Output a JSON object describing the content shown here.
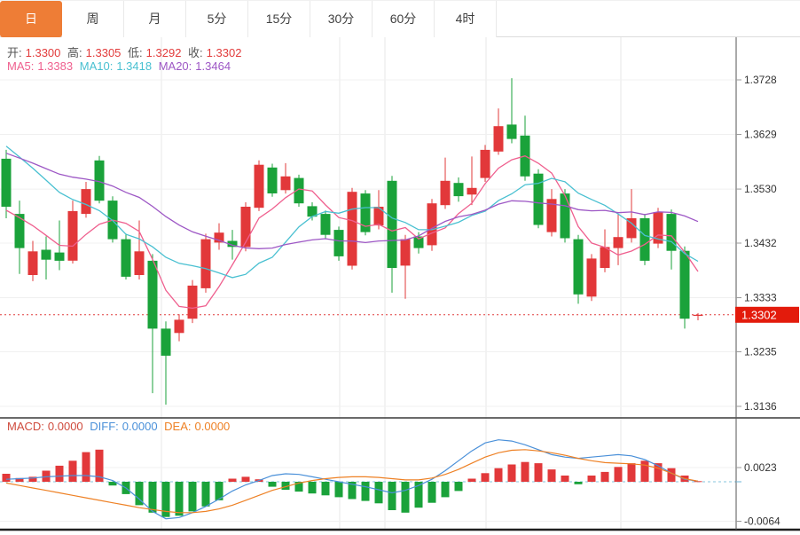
{
  "tabs": [
    {
      "label": "日",
      "selected": true
    },
    {
      "label": "周",
      "selected": false
    },
    {
      "label": "月",
      "selected": false
    },
    {
      "label": "5分",
      "selected": false
    },
    {
      "label": "15分",
      "selected": false
    },
    {
      "label": "30分",
      "selected": false
    },
    {
      "label": "60分",
      "selected": false
    },
    {
      "label": "4时",
      "selected": false
    }
  ],
  "quote_bar": {
    "open_label": "开:",
    "open": "1.3300",
    "high_label": "高:",
    "high": "1.3305",
    "low_label": "低:",
    "low": "1.3292",
    "close_label": "收:",
    "close": "1.3302"
  },
  "ma_bar": {
    "ma5_label": "MA5:",
    "ma5": "1.3383",
    "ma10_label": "MA10:",
    "ma10": "1.3418",
    "ma20_label": "MA20:",
    "ma20": "1.3464"
  },
  "macd_bar": {
    "macd_label": "MACD:",
    "macd": "0.0000",
    "diff_label": "DIFF:",
    "diff": "0.0000",
    "dea_label": "DEA:",
    "dea": "0.0000"
  },
  "price_tag": "1.3302",
  "colors": {
    "up": "#e2383a",
    "down": "#1aa23a",
    "ma5": "#ef5f8e",
    "ma10": "#49c0d1",
    "ma20": "#9d57c5",
    "diff": "#4a90d9",
    "dea": "#ee8125",
    "label_dark": "#555555",
    "value_red": "#e23b3b",
    "macd_label": "#cf4a3c",
    "tag_bg": "#e31b0c",
    "dotted": "#e03b3b",
    "axis_text": "#333333",
    "grid": "#f0f0f0",
    "vgrid": "#e7e7e7",
    "tab_selected_bg": "#ee7d36"
  },
  "chart_data": {
    "type": "candlestick",
    "timeframe": "日",
    "price_ticks": [
      1.3728,
      1.3629,
      1.353,
      1.3432,
      1.3333,
      1.3235,
      1.3136
    ],
    "current_price": 1.3302,
    "vgrid_x": [
      182,
      383,
      434,
      548,
      700
    ],
    "candles": [
      [
        1.3585,
        1.3601,
        1.3477,
        1.3498
      ],
      [
        1.3485,
        1.3509,
        1.3376,
        1.3423
      ],
      [
        1.3374,
        1.3436,
        1.3363,
        1.3417
      ],
      [
        1.342,
        1.3444,
        1.3366,
        1.3402
      ],
      [
        1.3415,
        1.3473,
        1.3383,
        1.34
      ],
      [
        1.34,
        1.3509,
        1.3395,
        1.349
      ],
      [
        1.3485,
        1.3543,
        1.3478,
        1.353
      ],
      [
        1.3582,
        1.359,
        1.3504,
        1.3509
      ],
      [
        1.3509,
        1.3517,
        1.3433,
        1.3439
      ],
      [
        1.3439,
        1.3449,
        1.3366,
        1.3371
      ],
      [
        1.3374,
        1.3473,
        1.3366,
        1.3417
      ],
      [
        1.34,
        1.3412,
        1.316,
        1.3277
      ],
      [
        1.3277,
        1.329,
        1.3139,
        1.3228
      ],
      [
        1.3269,
        1.3303,
        1.3254,
        1.3293
      ],
      [
        1.3295,
        1.3365,
        1.3287,
        1.3355
      ],
      [
        1.335,
        1.3449,
        1.3342,
        1.3439
      ],
      [
        1.3433,
        1.3468,
        1.342,
        1.3451
      ],
      [
        1.3436,
        1.3456,
        1.3402,
        1.3425
      ],
      [
        1.3425,
        1.3506,
        1.3417,
        1.3498
      ],
      [
        1.3496,
        1.3582,
        1.349,
        1.3574
      ],
      [
        1.3569,
        1.3576,
        1.3516,
        1.3522
      ],
      [
        1.3528,
        1.3577,
        1.3522,
        1.3553
      ],
      [
        1.355,
        1.3556,
        1.3498,
        1.3504
      ],
      [
        1.3499,
        1.3506,
        1.3473,
        1.348
      ],
      [
        1.3485,
        1.3491,
        1.3439,
        1.3447
      ],
      [
        1.3456,
        1.3462,
        1.34,
        1.3408
      ],
      [
        1.3391,
        1.3532,
        1.3384,
        1.3525
      ],
      [
        1.3522,
        1.3528,
        1.3446,
        1.3452
      ],
      [
        1.3464,
        1.3528,
        1.3457,
        1.3498
      ],
      [
        1.3545,
        1.3554,
        1.3342,
        1.3387
      ],
      [
        1.3391,
        1.3447,
        1.3331,
        1.3439
      ],
      [
        1.3444,
        1.3452,
        1.3413,
        1.3423
      ],
      [
        1.3428,
        1.3512,
        1.3418,
        1.3504
      ],
      [
        1.3501,
        1.3587,
        1.3494,
        1.3545
      ],
      [
        1.3541,
        1.3551,
        1.3507,
        1.3517
      ],
      [
        1.352,
        1.3589,
        1.3501,
        1.3532
      ],
      [
        1.355,
        1.361,
        1.3543,
        1.3601
      ],
      [
        1.3598,
        1.3676,
        1.3592,
        1.3644
      ],
      [
        1.3647,
        1.3731,
        1.3613,
        1.3621
      ],
      [
        1.3627,
        1.3663,
        1.3545,
        1.3553
      ],
      [
        1.3558,
        1.3566,
        1.3459,
        1.3465
      ],
      [
        1.3452,
        1.353,
        1.3444,
        1.3512
      ],
      [
        1.3522,
        1.353,
        1.3433,
        1.3441
      ],
      [
        1.3439,
        1.3447,
        1.3322,
        1.3339
      ],
      [
        1.3335,
        1.3412,
        1.3327,
        1.3404
      ],
      [
        1.3387,
        1.3457,
        1.3379,
        1.3425
      ],
      [
        1.3423,
        1.3485,
        1.3392,
        1.3443
      ],
      [
        1.3441,
        1.353,
        1.3433,
        1.3477
      ],
      [
        1.3477,
        1.3485,
        1.3392,
        1.34
      ],
      [
        1.3431,
        1.3496,
        1.3423,
        1.3488
      ],
      [
        1.3485,
        1.3493,
        1.3384,
        1.3418
      ],
      [
        1.3418,
        1.3426,
        1.3277,
        1.3295
      ],
      [
        1.33,
        1.3305,
        1.3292,
        1.3302
      ]
    ],
    "ma_seeds": {
      "ma5": 1.349,
      "ma10": 1.362,
      "ma20": 1.36
    },
    "macd": {
      "ticks": [
        0.0023,
        -0.0064
      ],
      "histogram": [
        0.0013,
        0.0006,
        0.0008,
        0.0018,
        0.0026,
        0.0034,
        0.0048,
        0.0052,
        -0.0006,
        -0.002,
        -0.0038,
        -0.005,
        -0.0057,
        -0.0055,
        -0.0048,
        -0.004,
        -0.003,
        0.0005,
        0.0008,
        0.0004,
        -0.0008,
        -0.0013,
        -0.0016,
        -0.0019,
        -0.0022,
        -0.0025,
        -0.0028,
        -0.0031,
        -0.0035,
        -0.0046,
        -0.005,
        -0.0042,
        -0.0034,
        -0.0025,
        -0.0015,
        0.0005,
        0.0014,
        0.0022,
        0.0028,
        0.0032,
        0.003,
        0.002,
        0.001,
        -0.0004,
        0.001,
        0.0016,
        0.0024,
        0.003,
        0.0034,
        0.003,
        0.0022,
        0.001,
        0.0001
      ],
      "diff": [
        0.0004,
        0.0005,
        0.0006,
        0.0008,
        0.0009,
        0.001,
        0.001,
        0.0008,
        0.0002,
        -0.001,
        -0.0028,
        -0.0048,
        -0.006,
        -0.0058,
        -0.005,
        -0.004,
        -0.0028,
        -0.0015,
        -0.0005,
        0.0002,
        0.001,
        0.0013,
        0.0012,
        0.0008,
        0.0004,
        0.0,
        -0.0004,
        -0.0008,
        -0.0013,
        -0.0018,
        -0.0014,
        -0.0006,
        0.0004,
        0.0018,
        0.0034,
        0.005,
        0.0063,
        0.0068,
        0.0066,
        0.006,
        0.0052,
        0.0044,
        0.004,
        0.0038,
        0.004,
        0.0042,
        0.0044,
        0.0042,
        0.0036,
        0.0026,
        0.0014,
        0.0004,
        0.0001
      ],
      "dea": [
        -0.0002,
        -0.0006,
        -0.001,
        -0.0014,
        -0.0018,
        -0.0022,
        -0.0026,
        -0.003,
        -0.0034,
        -0.0038,
        -0.0042,
        -0.0045,
        -0.0048,
        -0.005,
        -0.005,
        -0.0048,
        -0.0044,
        -0.0038,
        -0.003,
        -0.0022,
        -0.0014,
        -0.0008,
        -0.0002,
        0.0002,
        0.0005,
        0.0007,
        0.0008,
        0.0008,
        0.0007,
        0.0005,
        0.0003,
        0.0003,
        0.0006,
        0.0012,
        0.002,
        0.003,
        0.004,
        0.0047,
        0.0051,
        0.0052,
        0.005,
        0.0047,
        0.0043,
        0.0038,
        0.0034,
        0.0031,
        0.003,
        0.0029,
        0.0027,
        0.0022,
        0.0014,
        0.0005,
        0.0001
      ]
    }
  }
}
